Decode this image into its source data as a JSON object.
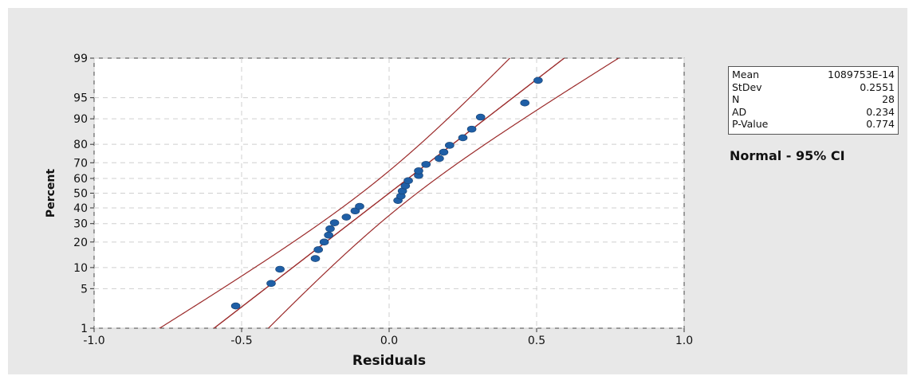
{
  "chart_data": {
    "type": "scatter",
    "title": "",
    "xlabel": "Residuals",
    "ylabel": "Percent",
    "xlim": [
      -1.0,
      1.0
    ],
    "ylim_percent": [
      1,
      99
    ],
    "x_ticks": [
      -1.0,
      -0.5,
      0.0,
      0.5,
      1.0
    ],
    "x_tick_labels": [
      "-1.0",
      "-0.5",
      "0.0",
      "0.5",
      "1.0"
    ],
    "y_ticks": [
      1,
      5,
      10,
      20,
      30,
      40,
      50,
      60,
      70,
      80,
      90,
      95,
      99
    ],
    "y_tick_labels": [
      "1",
      "5",
      "10",
      "20",
      "30",
      "40",
      "50",
      "60",
      "70",
      "80",
      "90",
      "95",
      "99"
    ],
    "y_scale": "normal-probability",
    "grid": true,
    "points": [
      {
        "x": -0.52,
        "y": 2.6
      },
      {
        "x": -0.4,
        "y": 6.0
      },
      {
        "x": -0.37,
        "y": 9.5
      },
      {
        "x": -0.25,
        "y": 13.0
      },
      {
        "x": -0.24,
        "y": 16.5
      },
      {
        "x": -0.22,
        "y": 20.0
      },
      {
        "x": -0.205,
        "y": 23.5
      },
      {
        "x": -0.2,
        "y": 27.0
      },
      {
        "x": -0.185,
        "y": 30.5
      },
      {
        "x": -0.145,
        "y": 34.0
      },
      {
        "x": -0.115,
        "y": 38.0
      },
      {
        "x": -0.1,
        "y": 41.0
      },
      {
        "x": 0.03,
        "y": 45.0
      },
      {
        "x": 0.04,
        "y": 48.0
      },
      {
        "x": 0.045,
        "y": 51.5
      },
      {
        "x": 0.055,
        "y": 55.0
      },
      {
        "x": 0.065,
        "y": 58.5
      },
      {
        "x": 0.1,
        "y": 62.0
      },
      {
        "x": 0.1,
        "y": 65.0
      },
      {
        "x": 0.125,
        "y": 69.0
      },
      {
        "x": 0.17,
        "y": 72.5
      },
      {
        "x": 0.185,
        "y": 76.0
      },
      {
        "x": 0.205,
        "y": 79.5
      },
      {
        "x": 0.25,
        "y": 83.0
      },
      {
        "x": 0.28,
        "y": 86.5
      },
      {
        "x": 0.31,
        "y": 90.5
      },
      {
        "x": 0.46,
        "y": 94.0
      },
      {
        "x": 0.505,
        "y": 97.4
      }
    ],
    "fit_line": {
      "mean": 0.0,
      "stdev": 0.2551
    },
    "ci_level": 0.95,
    "stats": [
      {
        "label": "Mean",
        "value": "1089753E-14"
      },
      {
        "label": "StDev",
        "value": "0.2551"
      },
      {
        "label": "N",
        "value": "28"
      },
      {
        "label": "AD",
        "value": "0.234"
      },
      {
        "label": "P-Value",
        "value": "0.774"
      }
    ],
    "distribution_label": "Normal - 95% CI",
    "colors": {
      "points": "#1f5fa6",
      "lines": "#9b2a2a",
      "grid": "#cfcfcf",
      "plot_bg": "#ffffff",
      "frame_bg": "#e8e8e8"
    }
  }
}
